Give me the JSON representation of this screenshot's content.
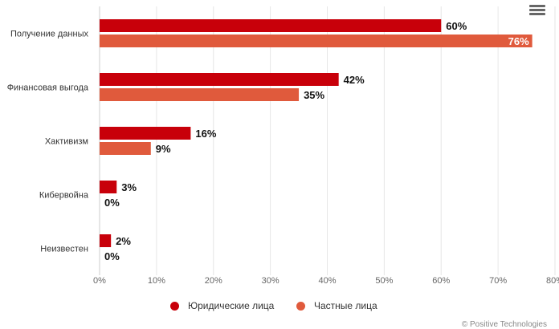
{
  "chart_data": {
    "type": "bar",
    "orientation": "horizontal",
    "categories": [
      "Получение данных",
      "Финансовая выгода",
      "Хактивизм",
      "Кибервойна",
      "Неизвестен"
    ],
    "series": [
      {
        "name": "Юридические лица",
        "color": "#c8000a",
        "values": [
          60,
          42,
          16,
          3,
          2
        ],
        "labels": [
          "60%",
          "42%",
          "16%",
          "3%",
          "2%"
        ]
      },
      {
        "name": "Частные лица",
        "color": "#e05a3c",
        "values": [
          76,
          35,
          9,
          0,
          0
        ],
        "labels": [
          "76%",
          "35%",
          "9%",
          "0%",
          "0%"
        ]
      }
    ],
    "xlim": [
      0,
      80
    ],
    "xticks": [
      "0%",
      "10%",
      "20%",
      "30%",
      "40%",
      "50%",
      "60%",
      "70%",
      "80%"
    ],
    "grid": true,
    "legend_position": "bottom"
  },
  "credits": "© Positive Technologies",
  "menu_icon": "hamburger-menu-icon"
}
